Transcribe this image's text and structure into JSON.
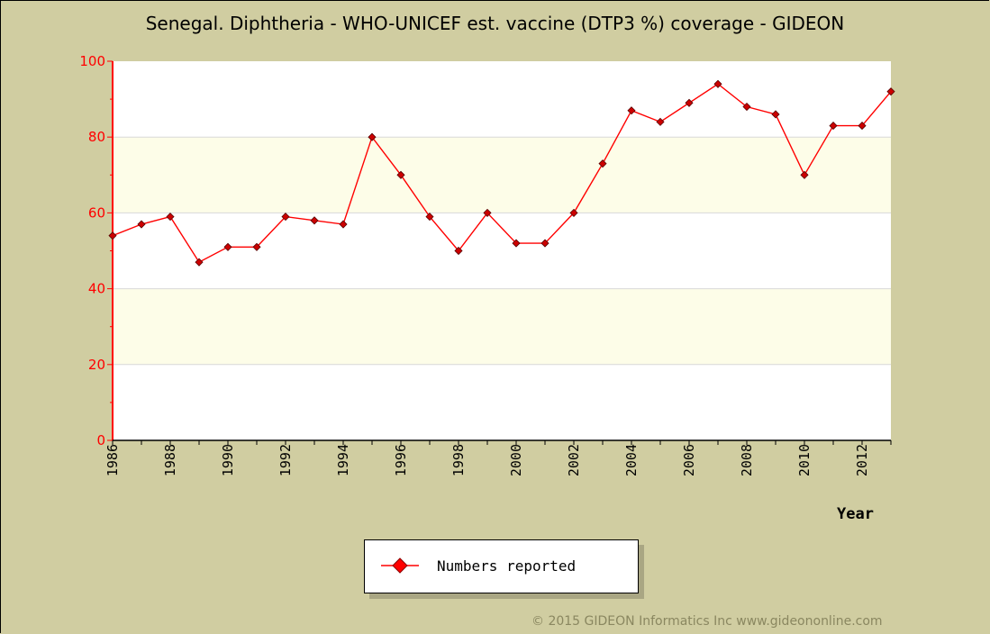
{
  "chart_data": {
    "type": "line",
    "title": "Senegal. Diphtheria - WHO-UNICEF est. vaccine (DTP3 %) coverage - GIDEON",
    "xlabel": "Year",
    "ylabel": "",
    "ylim": [
      0,
      100
    ],
    "xlim": [
      1986,
      2013
    ],
    "yticks": [
      0,
      20,
      40,
      60,
      80,
      100
    ],
    "xticks": [
      1986,
      1988,
      1990,
      1992,
      1994,
      1996,
      1998,
      2000,
      2002,
      2004,
      2006,
      2008,
      2010,
      2012
    ],
    "grid": true,
    "legend_position": "bottom-center",
    "series": [
      {
        "name": "Numbers reported",
        "x": [
          1986,
          1987,
          1988,
          1989,
          1990,
          1991,
          1992,
          1993,
          1994,
          1995,
          1996,
          1997,
          1998,
          1999,
          2000,
          2001,
          2002,
          2003,
          2004,
          2005,
          2006,
          2007,
          2008,
          2009,
          2010,
          2011,
          2012,
          2013
        ],
        "values": [
          54,
          57,
          59,
          47,
          51,
          51,
          59,
          58,
          57,
          80,
          70,
          59,
          50,
          60,
          52,
          52,
          60,
          73,
          87,
          84,
          89,
          94,
          88,
          86,
          70,
          83,
          83,
          92
        ],
        "color": "#ff0000",
        "marker_color": "#cc0000"
      }
    ]
  },
  "colors": {
    "background": "#d0cda1",
    "plot_background": "#ffffff",
    "band": "#fdfde8",
    "axis": "#ff0000"
  },
  "footer": {
    "copyright": "© 2015 GIDEON Informatics Inc www.gideononline.com"
  }
}
